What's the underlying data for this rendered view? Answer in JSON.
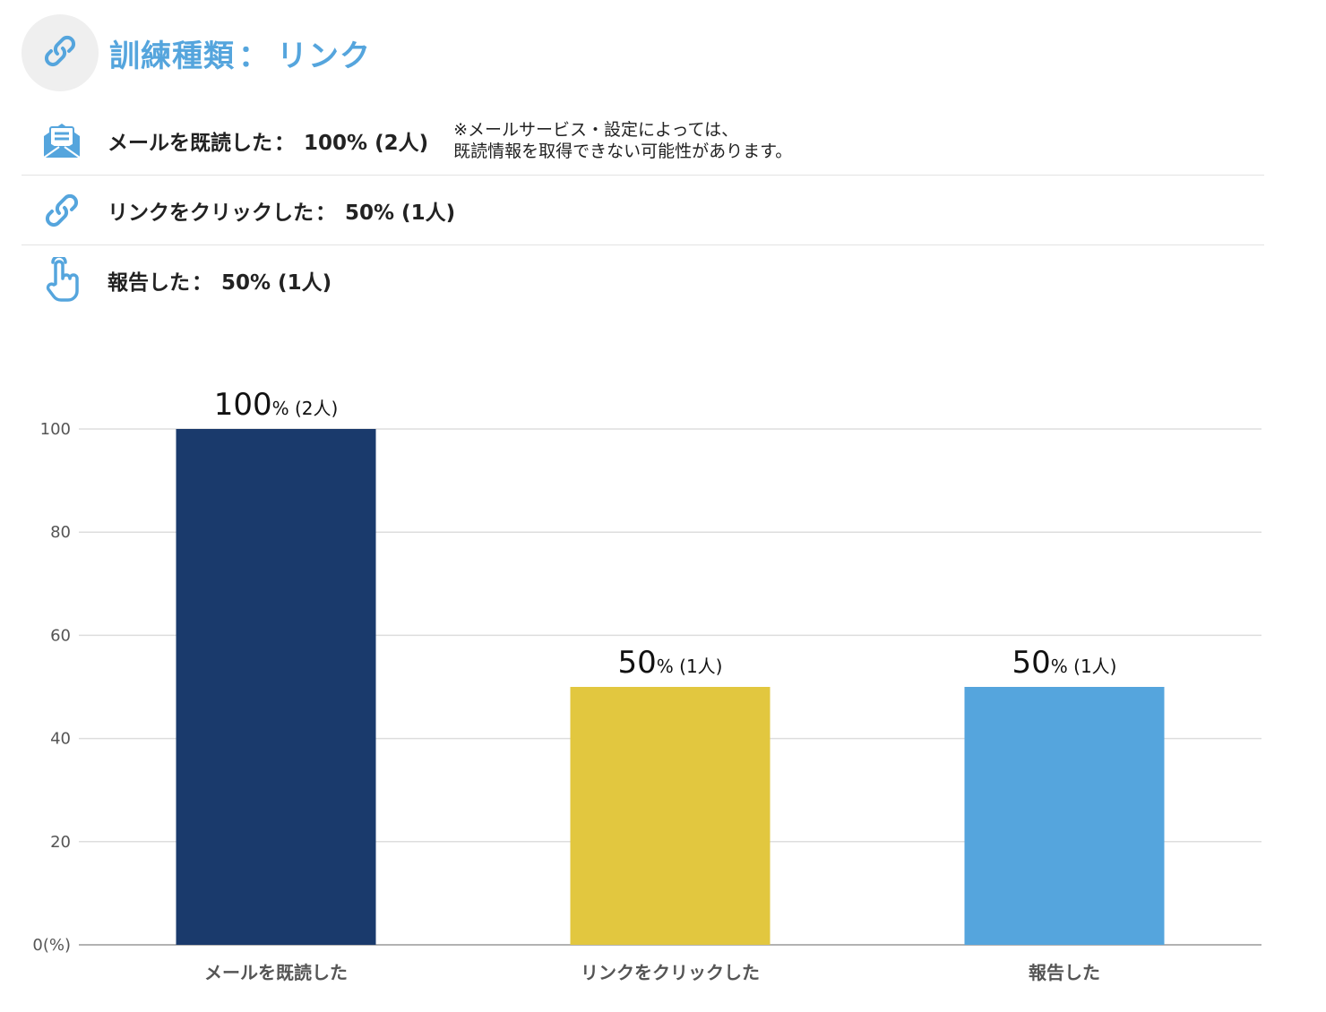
{
  "header": {
    "icon": "link-icon",
    "title_label": "訓練種類",
    "separator": "：",
    "title_value": "リンク"
  },
  "stats": [
    {
      "icon": "open-mail-icon",
      "label": "メールを既読した",
      "separator": "：",
      "value": "100% (2人)",
      "note": [
        "※メールサービス・設定によっては、",
        "既読情報を取得できない可能性があります。"
      ]
    },
    {
      "icon": "link-icon",
      "label": "リンクをクリックした",
      "separator": "：",
      "value": "50% (1人)"
    },
    {
      "icon": "pointer-hand-icon",
      "label": "報告した",
      "separator": "：",
      "value": "50% (1人)"
    }
  ],
  "colors": {
    "accent": "#55a5dd",
    "bar_read": "#1a3a6c",
    "bar_click": "#e2c73f",
    "bar_report": "#55a5dd",
    "grid": "#dddddd"
  },
  "chart_data": {
    "type": "bar",
    "categories": [
      "メールを既読した",
      "リンクをクリックした",
      "報告した"
    ],
    "values": [
      100,
      50,
      50
    ],
    "bar_labels": [
      {
        "main": "100",
        "suffix": "% (2人)"
      },
      {
        "main": "50",
        "suffix": "% (1人)"
      },
      {
        "main": "50",
        "suffix": "% (1人)"
      }
    ],
    "y_ticks": [
      "0(%)",
      "20",
      "40",
      "60",
      "80",
      "100"
    ],
    "ylim": [
      0,
      100
    ],
    "grid": true,
    "legend": "none"
  }
}
